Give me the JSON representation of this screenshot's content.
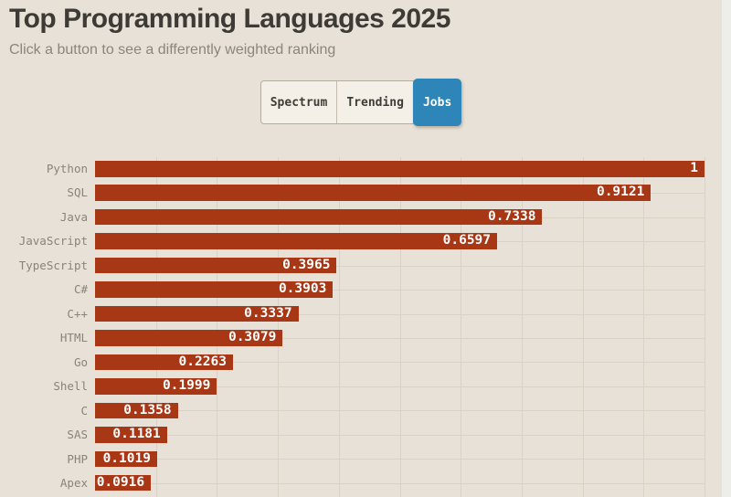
{
  "header": {
    "title": "Top Programming Languages 2025",
    "subtitle": "Click a button to see a differently weighted ranking"
  },
  "buttons": {
    "items": [
      {
        "label": "Spectrum",
        "active": false
      },
      {
        "label": "Trending",
        "active": false
      },
      {
        "label": "Jobs",
        "active": true
      }
    ],
    "active_color": "#2e86b8"
  },
  "chart_data": {
    "type": "bar",
    "orientation": "horizontal",
    "title": "Top Programming Languages 2025",
    "categories": [
      "Python",
      "SQL",
      "Java",
      "JavaScript",
      "TypeScript",
      "C#",
      "C++",
      "HTML",
      "Go",
      "Shell",
      "C",
      "SAS",
      "PHP",
      "Apex"
    ],
    "values": [
      1,
      0.9121,
      0.7338,
      0.6597,
      0.3965,
      0.3903,
      0.3337,
      0.3079,
      0.2263,
      0.1999,
      0.1358,
      0.1181,
      0.1019,
      0.0916
    ],
    "value_labels": [
      "1",
      "0.9121",
      "0.7338",
      "0.6597",
      "0.3965",
      "0.3903",
      "0.3337",
      "0.3079",
      "0.2263",
      "0.1999",
      "0.1358",
      "0.1181",
      "0.1019",
      "0.0916"
    ],
    "xlim": [
      0,
      1
    ],
    "gridline_step": 0.1,
    "grid": true,
    "legend": "none",
    "bar_color": "#a83716",
    "value_text_color": "#ffffff",
    "label_color": "#8b8377",
    "grid_color": "#dad2c5",
    "background_color": "#e8e1d7"
  }
}
